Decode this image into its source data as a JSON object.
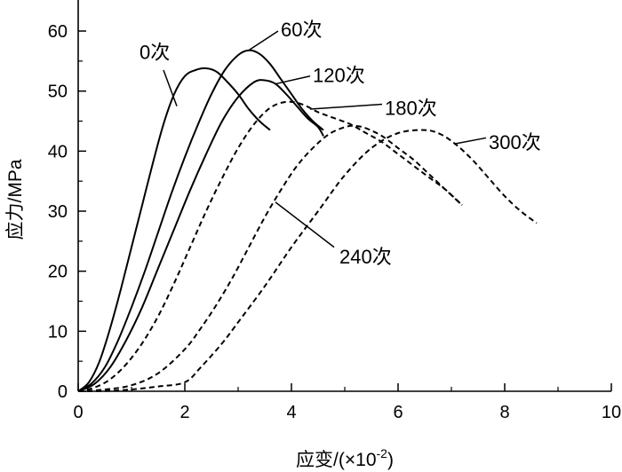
{
  "chart_data": {
    "type": "line",
    "xlabel": "应变/(×10",
    "xlabel_sup": "-2",
    "xlabel_close": ")",
    "ylabel": "应力/MPa",
    "xlim": [
      0,
      10
    ],
    "ylim": [
      0,
      65
    ],
    "x_ticks": [
      0,
      2,
      4,
      6,
      8,
      10
    ],
    "y_ticks": [
      0,
      10,
      20,
      30,
      40,
      50,
      60
    ],
    "grid": false,
    "legend": "none",
    "series": [
      {
        "name": "0次",
        "style": "solid",
        "x": [
          0,
          0.2,
          0.4,
          0.6,
          0.8,
          1.0,
          1.2,
          1.4,
          1.6,
          1.8,
          2.0,
          2.2,
          2.4,
          2.6,
          2.8,
          3.0,
          3.2,
          3.4,
          3.6
        ],
        "y": [
          0,
          1.5,
          5,
          10.5,
          17,
          24,
          31,
          38,
          44.5,
          49.5,
          52.5,
          53.5,
          53.8,
          53.2,
          51.5,
          49.5,
          47,
          45,
          43.5
        ]
      },
      {
        "name": "60次",
        "style": "solid",
        "x": [
          0,
          0.25,
          0.5,
          0.75,
          1.0,
          1.25,
          1.5,
          1.75,
          2.0,
          2.25,
          2.5,
          2.75,
          3.0,
          3.2,
          3.4,
          3.6,
          3.8,
          4.0,
          4.2,
          4.4,
          4.6
        ],
        "y": [
          0,
          1.3,
          4,
          8.5,
          14,
          20,
          26.5,
          33,
          39,
          44.5,
          49.5,
          53.5,
          56,
          56.8,
          56.2,
          54.5,
          52,
          49.5,
          47,
          45,
          43.5
        ]
      },
      {
        "name": "120次",
        "style": "solid",
        "x": [
          0,
          0.3,
          0.6,
          0.9,
          1.2,
          1.5,
          1.8,
          2.1,
          2.4,
          2.7,
          3.0,
          3.3,
          3.5,
          3.7,
          3.9,
          4.1,
          4.3,
          4.5,
          4.6
        ],
        "y": [
          0,
          1.2,
          4,
          8.5,
          14,
          20.5,
          27,
          33.5,
          39.5,
          45,
          49,
          51.5,
          51.8,
          51.2,
          49.5,
          47.5,
          45.5,
          44,
          42.5
        ]
      },
      {
        "name": "180次",
        "style": "dashed",
        "x": [
          0,
          0.3,
          0.6,
          0.9,
          1.2,
          1.5,
          1.8,
          2.1,
          2.4,
          2.7,
          3.0,
          3.3,
          3.6,
          3.9,
          4.2,
          4.5,
          4.8,
          5.1,
          5.4,
          5.7,
          6.0,
          6.3,
          6.6,
          6.9,
          7.2
        ],
        "y": [
          0,
          0.6,
          2,
          4.5,
          8,
          12.5,
          18,
          24,
          30,
          35.5,
          40.5,
          44.5,
          47.2,
          48.2,
          47.8,
          46.5,
          45.5,
          44.5,
          43,
          41.5,
          39.5,
          37.5,
          35.5,
          33.5,
          31
        ]
      },
      {
        "name": "240次",
        "style": "dashed",
        "x": [
          0,
          0.5,
          1.0,
          1.5,
          2.0,
          2.3,
          2.6,
          2.9,
          3.2,
          3.5,
          3.8,
          4.1,
          4.4,
          4.7,
          5.0,
          5.2,
          5.4,
          5.7,
          6.0,
          6.3,
          6.6,
          6.9,
          7.2
        ],
        "y": [
          0,
          0.3,
          1,
          3,
          7,
          10.5,
          14.5,
          19,
          24,
          29,
          33.5,
          37.5,
          40.5,
          42.8,
          44,
          44.2,
          43.8,
          42.5,
          40.5,
          38.5,
          36,
          33.5,
          31
        ]
      },
      {
        "name": "300次",
        "style": "dashed",
        "x": [
          0,
          0.5,
          1.0,
          1.5,
          2.0,
          2.3,
          2.7,
          3.0,
          3.5,
          4.0,
          4.5,
          5.0,
          5.5,
          6.0,
          6.5,
          6.8,
          7.1,
          7.4,
          7.7,
          8.0,
          8.3,
          8.6
        ],
        "y": [
          0,
          0.05,
          0.3,
          0.8,
          1.5,
          4,
          8,
          11.5,
          17.5,
          24,
          30,
          36,
          40.5,
          43,
          43.5,
          42.8,
          41,
          38.5,
          35.5,
          32.5,
          30,
          28
        ]
      }
    ],
    "annotations": [
      {
        "text": "0次",
        "label_x": 1.15,
        "label_y": 56.5,
        "anchor": "start",
        "point_x": 1.85,
        "point_y": 47.5,
        "line_from_x": 1.6,
        "line_from_y": 53.5
      },
      {
        "text": "60次",
        "label_x": 3.8,
        "label_y": 60.3,
        "anchor": "start",
        "point_x": 3.2,
        "point_y": 56.8,
        "line_from_x": 3.75,
        "line_from_y": 60.0
      },
      {
        "text": "120次",
        "label_x": 4.4,
        "label_y": 52.7,
        "anchor": "start",
        "point_x": 3.7,
        "point_y": 51.2,
        "line_from_x": 4.35,
        "line_from_y": 52.5
      },
      {
        "text": "180次",
        "label_x": 5.75,
        "label_y": 47.2,
        "anchor": "start",
        "point_x": 4.35,
        "point_y": 47.0,
        "line_from_x": 5.7,
        "line_from_y": 47.8
      },
      {
        "text": "240次",
        "label_x": 4.9,
        "label_y": 22.5,
        "anchor": "start",
        "point_x": 3.7,
        "point_y": 31.5,
        "line_from_x": 4.8,
        "line_from_y": 24.0
      },
      {
        "text": "300次",
        "label_x": 7.7,
        "label_y": 41.5,
        "anchor": "start",
        "point_x": 7.05,
        "point_y": 41.2,
        "line_from_x": 7.65,
        "line_from_y": 42.2
      }
    ]
  }
}
